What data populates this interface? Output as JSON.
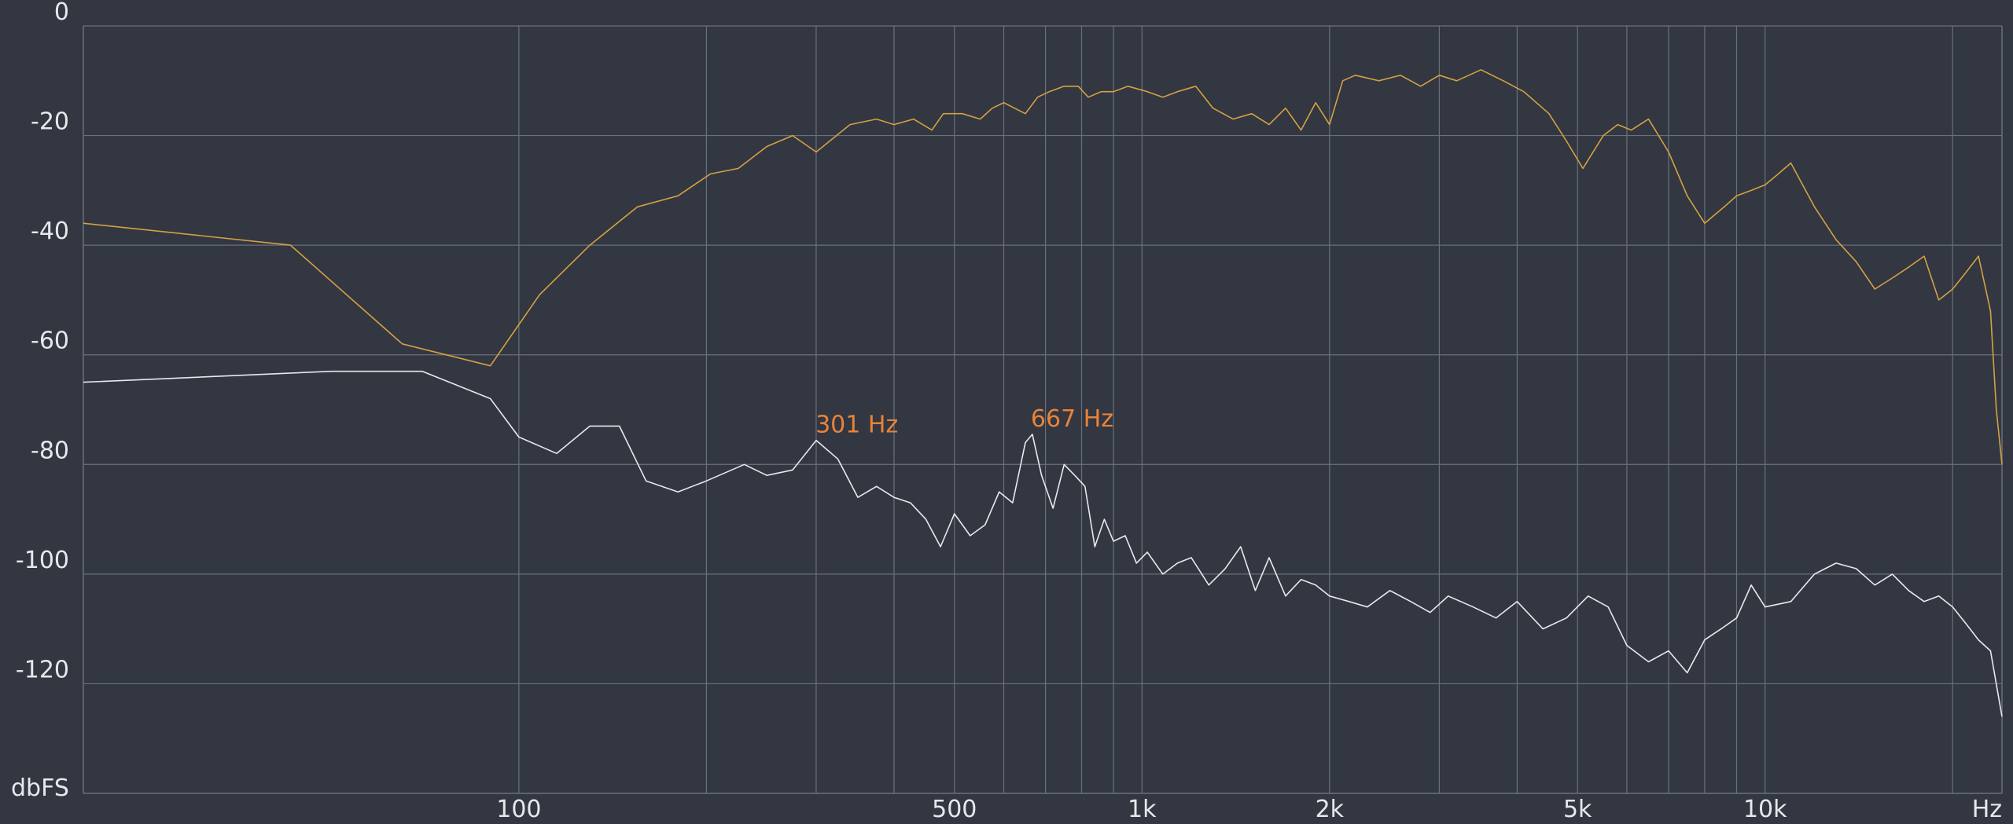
{
  "chart_data": {
    "type": "line",
    "title": "",
    "xlabel": "Hz",
    "ylabel": "dbFS",
    "x_scale": "log",
    "xlim": [
      20,
      24000
    ],
    "ylim": [
      -140,
      0
    ],
    "grid": true,
    "x_ticks": [
      {
        "value": 100,
        "label": "100"
      },
      {
        "value": 500,
        "label": "500"
      },
      {
        "value": 1000,
        "label": "1k"
      },
      {
        "value": 2000,
        "label": "2k"
      },
      {
        "value": 5000,
        "label": "5k"
      },
      {
        "value": 10000,
        "label": "10k"
      }
    ],
    "x_grid_values": [
      100,
      200,
      300,
      400,
      500,
      600,
      700,
      800,
      900,
      1000,
      2000,
      3000,
      4000,
      5000,
      6000,
      7000,
      8000,
      9000,
      10000,
      20000
    ],
    "y_ticks": [
      {
        "value": 0,
        "label": "0"
      },
      {
        "value": -20,
        "label": "-20"
      },
      {
        "value": -40,
        "label": "-40"
      },
      {
        "value": -60,
        "label": "-60"
      },
      {
        "value": -80,
        "label": "-80"
      },
      {
        "value": -100,
        "label": "-100"
      },
      {
        "value": -120,
        "label": "-120"
      }
    ],
    "colors": {
      "background": "#323741",
      "grid": "#6b717c",
      "series_orange": "#d6a043",
      "series_white": "#e8e9ec",
      "marker": "#e8833a"
    },
    "annotations": [
      {
        "label": "301 Hz",
        "x": 301,
        "y": -75.6
      },
      {
        "label": "667 Hz",
        "x": 667,
        "y": -74.5
      }
    ],
    "series": [
      {
        "color": "#d6a043",
        "x": [
          20,
          43,
          65,
          90,
          108,
          130,
          155,
          180,
          203,
          225,
          250,
          275,
          300,
          340,
          375,
          400,
          430,
          460,
          480,
          515,
          550,
          575,
          600,
          650,
          680,
          710,
          750,
          790,
          820,
          860,
          900,
          950,
          1020,
          1080,
          1140,
          1220,
          1300,
          1400,
          1500,
          1600,
          1700,
          1800,
          1900,
          2000,
          2100,
          2200,
          2400,
          2600,
          2800,
          3000,
          3200,
          3500,
          3800,
          4100,
          4500,
          4800,
          5100,
          5500,
          5800,
          6100,
          6500,
          7000,
          7500,
          8000,
          8600,
          9000,
          9500,
          10000,
          10500,
          11000,
          12000,
          13000,
          14000,
          15000,
          16000,
          17000,
          18000,
          19000,
          20000,
          21000,
          22000,
          23000,
          23500,
          24000
        ],
        "y": [
          -36,
          -40,
          -58,
          -62,
          -49,
          -40,
          -33,
          -31,
          -27,
          -26,
          -22,
          -20,
          -23,
          -18,
          -17,
          -18,
          -17,
          -19,
          -16,
          -16,
          -17,
          -15,
          -14,
          -16,
          -13,
          -12,
          -11,
          -11,
          -13,
          -12,
          -12,
          -11,
          -12,
          -13,
          -12,
          -11,
          -15,
          -17,
          -16,
          -18,
          -15,
          -19,
          -14,
          -18,
          -10,
          -9,
          -10,
          -9,
          -11,
          -9,
          -10,
          -8,
          -10,
          -12,
          -16,
          -21,
          -26,
          -20,
          -18,
          -19,
          -17,
          -23,
          -31,
          -36,
          -33,
          -31,
          -30,
          -29,
          -27,
          -25,
          -33,
          -39,
          -43,
          -48,
          -46,
          -44,
          -42,
          -50,
          -48,
          -45,
          -42,
          -52,
          -70,
          -80
        ]
      },
      {
        "color": "#e8e9ec",
        "x": [
          20,
          50,
          70,
          90,
          100,
          115,
          130,
          145,
          160,
          180,
          200,
          230,
          250,
          275,
          300,
          325,
          350,
          375,
          400,
          425,
          450,
          475,
          500,
          530,
          560,
          590,
          620,
          650,
          667,
          690,
          720,
          750,
          780,
          810,
          840,
          870,
          900,
          940,
          980,
          1020,
          1080,
          1140,
          1200,
          1280,
          1360,
          1440,
          1520,
          1600,
          1700,
          1800,
          1900,
          2000,
          2150,
          2300,
          2500,
          2700,
          2900,
          3100,
          3400,
          3700,
          4000,
          4400,
          4800,
          5200,
          5600,
          6000,
          6500,
          7000,
          7500,
          8000,
          8500,
          9000,
          9500,
          10000,
          11000,
          12000,
          13000,
          14000,
          15000,
          16000,
          17000,
          18000,
          19000,
          20000,
          21000,
          22000,
          23000,
          24000
        ],
        "y": [
          -65,
          -63,
          -63,
          -68,
          -75,
          -78,
          -73,
          -73,
          -83,
          -85,
          -83,
          -80,
          -82,
          -81,
          -75.6,
          -79,
          -86,
          -84,
          -86,
          -87,
          -90,
          -95,
          -89,
          -93,
          -91,
          -85,
          -87,
          -76,
          -74.5,
          -82,
          -88,
          -80,
          -82,
          -84,
          -95,
          -90,
          -94,
          -93,
          -98,
          -96,
          -100,
          -98,
          -97,
          -102,
          -99,
          -95,
          -103,
          -97,
          -104,
          -101,
          -102,
          -104,
          -105,
          -106,
          -103,
          -105,
          -107,
          -104,
          -106,
          -108,
          -105,
          -110,
          -108,
          -104,
          -106,
          -113,
          -116,
          -114,
          -118,
          -112,
          -110,
          -108,
          -102,
          -106,
          -105,
          -100,
          -98,
          -99,
          -102,
          -100,
          -103,
          -105,
          -104,
          -106,
          -109,
          -112,
          -114,
          -126
        ]
      }
    ]
  }
}
